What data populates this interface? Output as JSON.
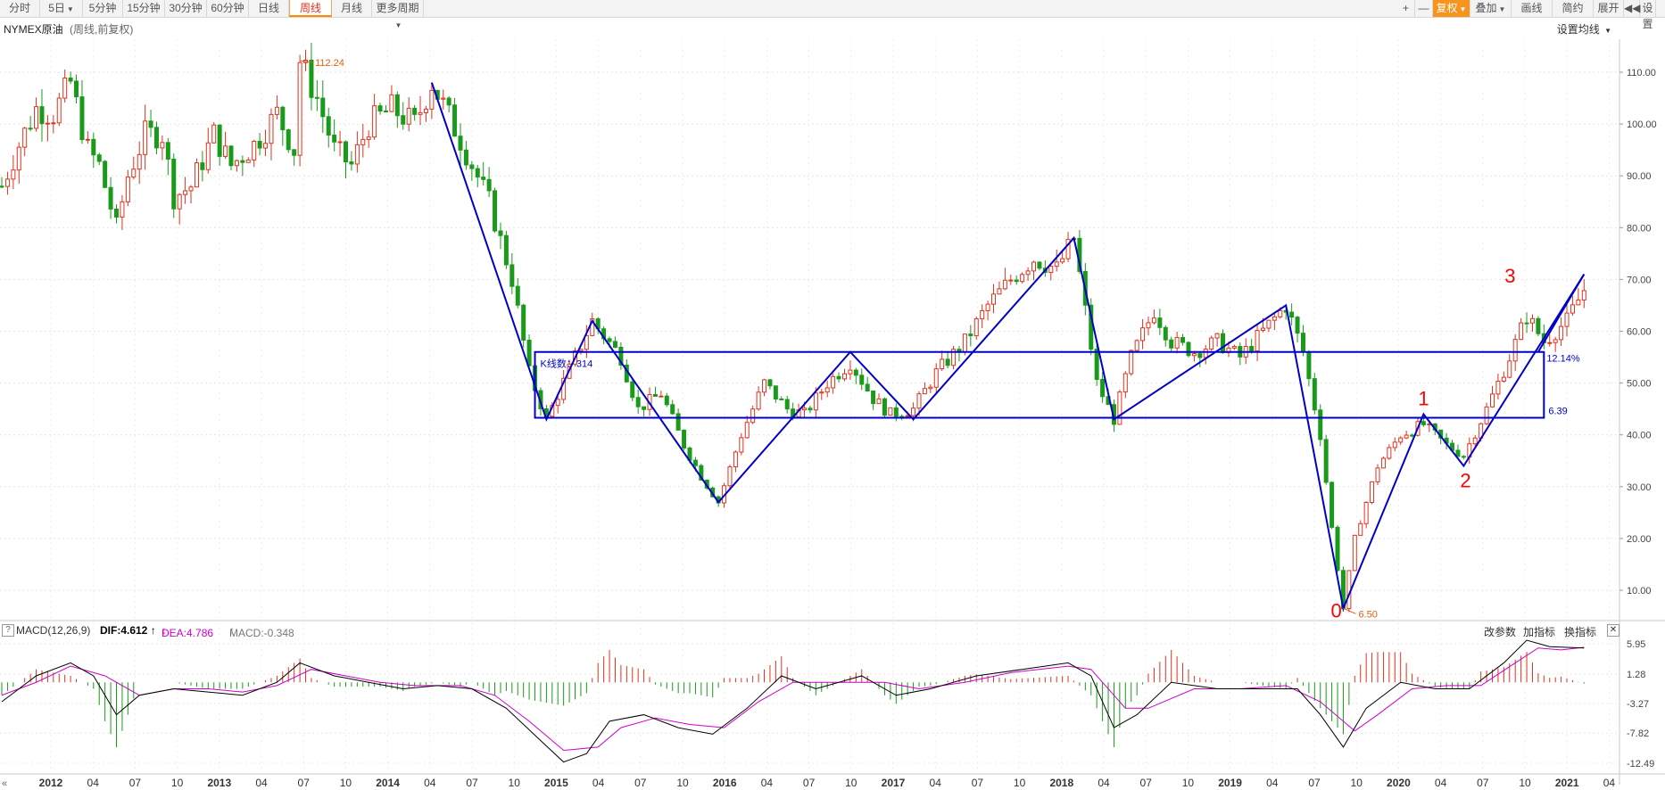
{
  "toolbar": {
    "left": [
      {
        "label": "分时",
        "caret": false,
        "active": false
      },
      {
        "label": "5日",
        "caret": true,
        "active": false
      },
      {
        "label": "5分钟",
        "caret": false,
        "active": false
      },
      {
        "label": "15分钟",
        "caret": false,
        "active": false
      },
      {
        "label": "30分钟",
        "caret": false,
        "active": false
      },
      {
        "label": "60分钟",
        "caret": false,
        "active": false
      },
      {
        "label": "日线",
        "caret": false,
        "active": false
      },
      {
        "label": "周线",
        "caret": false,
        "active": true
      },
      {
        "label": "月线",
        "caret": false,
        "active": false
      },
      {
        "label": "更多周期",
        "caret": true,
        "active": false
      }
    ],
    "right": [
      {
        "label": "+",
        "caret": false
      },
      {
        "label": "—",
        "caret": false
      },
      {
        "label": "复权",
        "caret": true
      },
      {
        "label": "叠加",
        "caret": true
      },
      {
        "label": "画线",
        "caret": false
      },
      {
        "label": "简约",
        "caret": false
      },
      {
        "label": "展开",
        "caret": false
      },
      {
        "label": "◀◀",
        "caret": false
      },
      {
        "label": "设置",
        "caret": false
      }
    ]
  },
  "header": {
    "title": "NYMEX原油",
    "subtitle": "(周线,前复权)",
    "set_ma": "设置均线"
  },
  "macd": {
    "name": "MACD(12,26,9)",
    "dif": "DIF:4.612",
    "dea": "DEA:4.786",
    "macd": "MACD:-0.348",
    "actions": [
      "改参数",
      "加指标",
      "换指标"
    ],
    "help": "?",
    "close": "✕"
  },
  "colors": {
    "up": "#e0321e",
    "down": "#1a9a1a",
    "annotation": "#0000c8",
    "label": "#ff0000",
    "extreme": "#e0600a",
    "dif": "#000000",
    "dea": "#cc00cc",
    "toolbar_active": "#ff8a00"
  },
  "chart_data": {
    "type": "candlestick",
    "title": "NYMEX原油",
    "y_ticks": [
      "110.00",
      "100.00",
      "90.00",
      "80.00",
      "70.00",
      "60.00",
      "50.00",
      "40.00",
      "30.00",
      "20.00",
      "10.00"
    ],
    "ylim": [
      6.5,
      112.24
    ],
    "x_labels": [
      {
        "label": "2012",
        "year": true
      },
      {
        "label": "04",
        "year": false
      },
      {
        "label": "07",
        "year": false
      },
      {
        "label": "10",
        "year": false
      },
      {
        "label": "2013",
        "year": true
      },
      {
        "label": "04",
        "year": false
      },
      {
        "label": "07",
        "year": false
      },
      {
        "label": "10",
        "year": false
      },
      {
        "label": "2014",
        "year": true
      },
      {
        "label": "04",
        "year": false
      },
      {
        "label": "07",
        "year": false
      },
      {
        "label": "10",
        "year": false
      },
      {
        "label": "2015",
        "year": true
      },
      {
        "label": "04",
        "year": false
      },
      {
        "label": "07",
        "year": false
      },
      {
        "label": "10",
        "year": false
      },
      {
        "label": "2016",
        "year": true
      },
      {
        "label": "04",
        "year": false
      },
      {
        "label": "07",
        "year": false
      },
      {
        "label": "10",
        "year": false
      },
      {
        "label": "2017",
        "year": true
      },
      {
        "label": "04",
        "year": false
      },
      {
        "label": "07",
        "year": false
      },
      {
        "label": "10",
        "year": false
      },
      {
        "label": "2018",
        "year": true
      },
      {
        "label": "04",
        "year": false
      },
      {
        "label": "07",
        "year": false
      },
      {
        "label": "10",
        "year": false
      },
      {
        "label": "2019",
        "year": true
      },
      {
        "label": "04",
        "year": false
      },
      {
        "label": "07",
        "year": false
      },
      {
        "label": "10",
        "year": false
      },
      {
        "label": "2020",
        "year": true
      },
      {
        "label": "04",
        "year": false
      },
      {
        "label": "07",
        "year": false
      },
      {
        "label": "10",
        "year": false
      },
      {
        "label": "2021",
        "year": true
      },
      {
        "label": "04",
        "year": false
      }
    ],
    "price_path": [
      [
        0,
        88
      ],
      [
        3,
        96
      ],
      [
        6,
        103
      ],
      [
        9,
        102
      ],
      [
        12,
        108
      ],
      [
        15,
        95
      ],
      [
        17,
        92
      ],
      [
        20,
        80
      ],
      [
        22,
        90
      ],
      [
        25,
        98
      ],
      [
        28,
        98
      ],
      [
        30,
        86
      ],
      [
        33,
        88
      ],
      [
        37,
        98
      ],
      [
        40,
        92
      ],
      [
        44,
        96
      ],
      [
        48,
        102
      ],
      [
        51,
        95
      ],
      [
        52,
        112.24
      ],
      [
        55,
        105
      ],
      [
        58,
        95
      ],
      [
        61,
        92
      ],
      [
        64,
        100
      ],
      [
        68,
        103
      ],
      [
        72,
        100
      ],
      [
        75,
        108
      ],
      [
        80,
        97
      ],
      [
        85,
        85
      ],
      [
        89,
        70
      ],
      [
        92,
        52
      ],
      [
        95,
        43
      ],
      [
        100,
        55
      ],
      [
        103,
        62
      ],
      [
        108,
        55
      ],
      [
        111,
        45
      ],
      [
        115,
        48
      ],
      [
        119,
        38
      ],
      [
        122,
        32
      ],
      [
        125,
        27
      ],
      [
        129,
        40
      ],
      [
        133,
        50
      ],
      [
        137,
        45
      ],
      [
        140,
        44
      ],
      [
        144,
        50
      ],
      [
        148,
        54
      ],
      [
        152,
        47
      ],
      [
        155,
        44
      ],
      [
        159,
        45
      ],
      [
        163,
        52
      ],
      [
        168,
        58
      ],
      [
        172,
        65
      ],
      [
        176,
        70
      ],
      [
        180,
        74
      ],
      [
        184,
        72
      ],
      [
        187,
        78
      ],
      [
        191,
        50
      ],
      [
        194,
        43
      ],
      [
        197,
        55
      ],
      [
        201,
        64
      ],
      [
        204,
        58
      ],
      [
        208,
        56
      ],
      [
        212,
        58
      ],
      [
        216,
        55
      ],
      [
        220,
        60
      ],
      [
        224,
        65
      ],
      [
        227,
        56
      ],
      [
        230,
        40
      ],
      [
        232,
        22
      ],
      [
        234,
        6.5
      ],
      [
        236,
        20
      ],
      [
        240,
        34
      ],
      [
        244,
        40
      ],
      [
        248,
        42
      ],
      [
        252,
        38
      ],
      [
        255,
        36
      ],
      [
        259,
        45
      ],
      [
        263,
        55
      ],
      [
        266,
        63
      ],
      [
        269,
        58
      ],
      [
        273,
        62
      ],
      [
        276,
        68
      ]
    ],
    "annotation_lines": [
      [
        [
          75,
          108
        ],
        [
          95,
          43
        ],
        [
          103,
          62
        ],
        [
          125,
          27
        ],
        [
          148,
          56
        ],
        [
          159,
          43
        ],
        [
          187,
          78
        ],
        [
          194,
          43
        ],
        [
          224,
          65
        ],
        [
          234,
          6.5
        ],
        [
          248,
          44
        ],
        [
          255,
          34
        ],
        [
          276,
          71
        ]
      ],
      [
        [
          268,
          56
        ],
        [
          276,
          71
        ]
      ]
    ],
    "consolidation_box": {
      "x0": 93,
      "x1": 269,
      "y_top": 56.0,
      "y_bottom": 43.3
    },
    "box_label": "K线数：314",
    "level_labels": [
      "12.14%",
      "6.39"
    ],
    "wave_labels": [
      {
        "text": "0",
        "at": [
          234,
          6.5
        ]
      },
      {
        "text": "1",
        "at": [
          248,
          44
        ]
      },
      {
        "text": "2",
        "at": [
          255,
          34
        ]
      },
      {
        "text": "3",
        "at": [
          264,
          68
        ]
      }
    ],
    "extreme_labels": [
      {
        "text": "112.24",
        "at": [
          52,
          112.24
        ]
      },
      {
        "text": "6.50",
        "at": [
          234,
          6.5
        ]
      }
    ],
    "macd_ticks": [
      "5.95",
      "1.28",
      "-3.27",
      "-7.82",
      "-12.49"
    ],
    "macd_range": [
      -12.49,
      5.95
    ],
    "dif_path": [
      [
        0,
        -3
      ],
      [
        6,
        1
      ],
      [
        12,
        3
      ],
      [
        16,
        1
      ],
      [
        20,
        -5
      ],
      [
        24,
        -2
      ],
      [
        30,
        -1
      ],
      [
        36,
        -1.5
      ],
      [
        42,
        -2
      ],
      [
        48,
        0
      ],
      [
        52,
        3
      ],
      [
        58,
        1
      ],
      [
        64,
        0
      ],
      [
        70,
        -1
      ],
      [
        76,
        -0.5
      ],
      [
        82,
        -1
      ],
      [
        88,
        -4
      ],
      [
        94,
        -9
      ],
      [
        98,
        -12.3
      ],
      [
        102,
        -11
      ],
      [
        106,
        -6
      ],
      [
        112,
        -5
      ],
      [
        118,
        -7
      ],
      [
        124,
        -8
      ],
      [
        130,
        -4
      ],
      [
        136,
        1
      ],
      [
        142,
        -1
      ],
      [
        150,
        1
      ],
      [
        156,
        -2
      ],
      [
        162,
        -1
      ],
      [
        170,
        1
      ],
      [
        178,
        2
      ],
      [
        186,
        3
      ],
      [
        190,
        1
      ],
      [
        194,
        -7
      ],
      [
        198,
        -5
      ],
      [
        204,
        0
      ],
      [
        212,
        -1
      ],
      [
        220,
        -1
      ],
      [
        226,
        -1
      ],
      [
        230,
        -5
      ],
      [
        234,
        -10
      ],
      [
        238,
        -4
      ],
      [
        244,
        0
      ],
      [
        250,
        -1
      ],
      [
        256,
        -1
      ],
      [
        262,
        3
      ],
      [
        266,
        6.5
      ],
      [
        270,
        5.5
      ],
      [
        276,
        5.3
      ]
    ],
    "dea_path": [
      [
        0,
        -2
      ],
      [
        6,
        0
      ],
      [
        12,
        2.5
      ],
      [
        18,
        1
      ],
      [
        24,
        -2
      ],
      [
        30,
        -1
      ],
      [
        36,
        -1
      ],
      [
        42,
        -1.5
      ],
      [
        48,
        -0.5
      ],
      [
        54,
        2
      ],
      [
        60,
        1
      ],
      [
        66,
        0
      ],
      [
        72,
        -0.5
      ],
      [
        80,
        -0.5
      ],
      [
        86,
        -2
      ],
      [
        92,
        -6
      ],
      [
        98,
        -10.5
      ],
      [
        104,
        -10
      ],
      [
        108,
        -7
      ],
      [
        114,
        -5.5
      ],
      [
        120,
        -6.5
      ],
      [
        126,
        -7
      ],
      [
        132,
        -3
      ],
      [
        138,
        0
      ],
      [
        146,
        0
      ],
      [
        154,
        0
      ],
      [
        160,
        -1
      ],
      [
        168,
        0
      ],
      [
        176,
        1.5
      ],
      [
        186,
        2.5
      ],
      [
        190,
        2
      ],
      [
        196,
        -4
      ],
      [
        200,
        -4
      ],
      [
        208,
        -1
      ],
      [
        216,
        -1
      ],
      [
        224,
        -0.5
      ],
      [
        230,
        -3
      ],
      [
        236,
        -7.5
      ],
      [
        240,
        -5
      ],
      [
        246,
        -1
      ],
      [
        252,
        -0.5
      ],
      [
        258,
        -0.5
      ],
      [
        264,
        3
      ],
      [
        268,
        5.3
      ],
      [
        272,
        5
      ],
      [
        276,
        5.4
      ]
    ]
  }
}
